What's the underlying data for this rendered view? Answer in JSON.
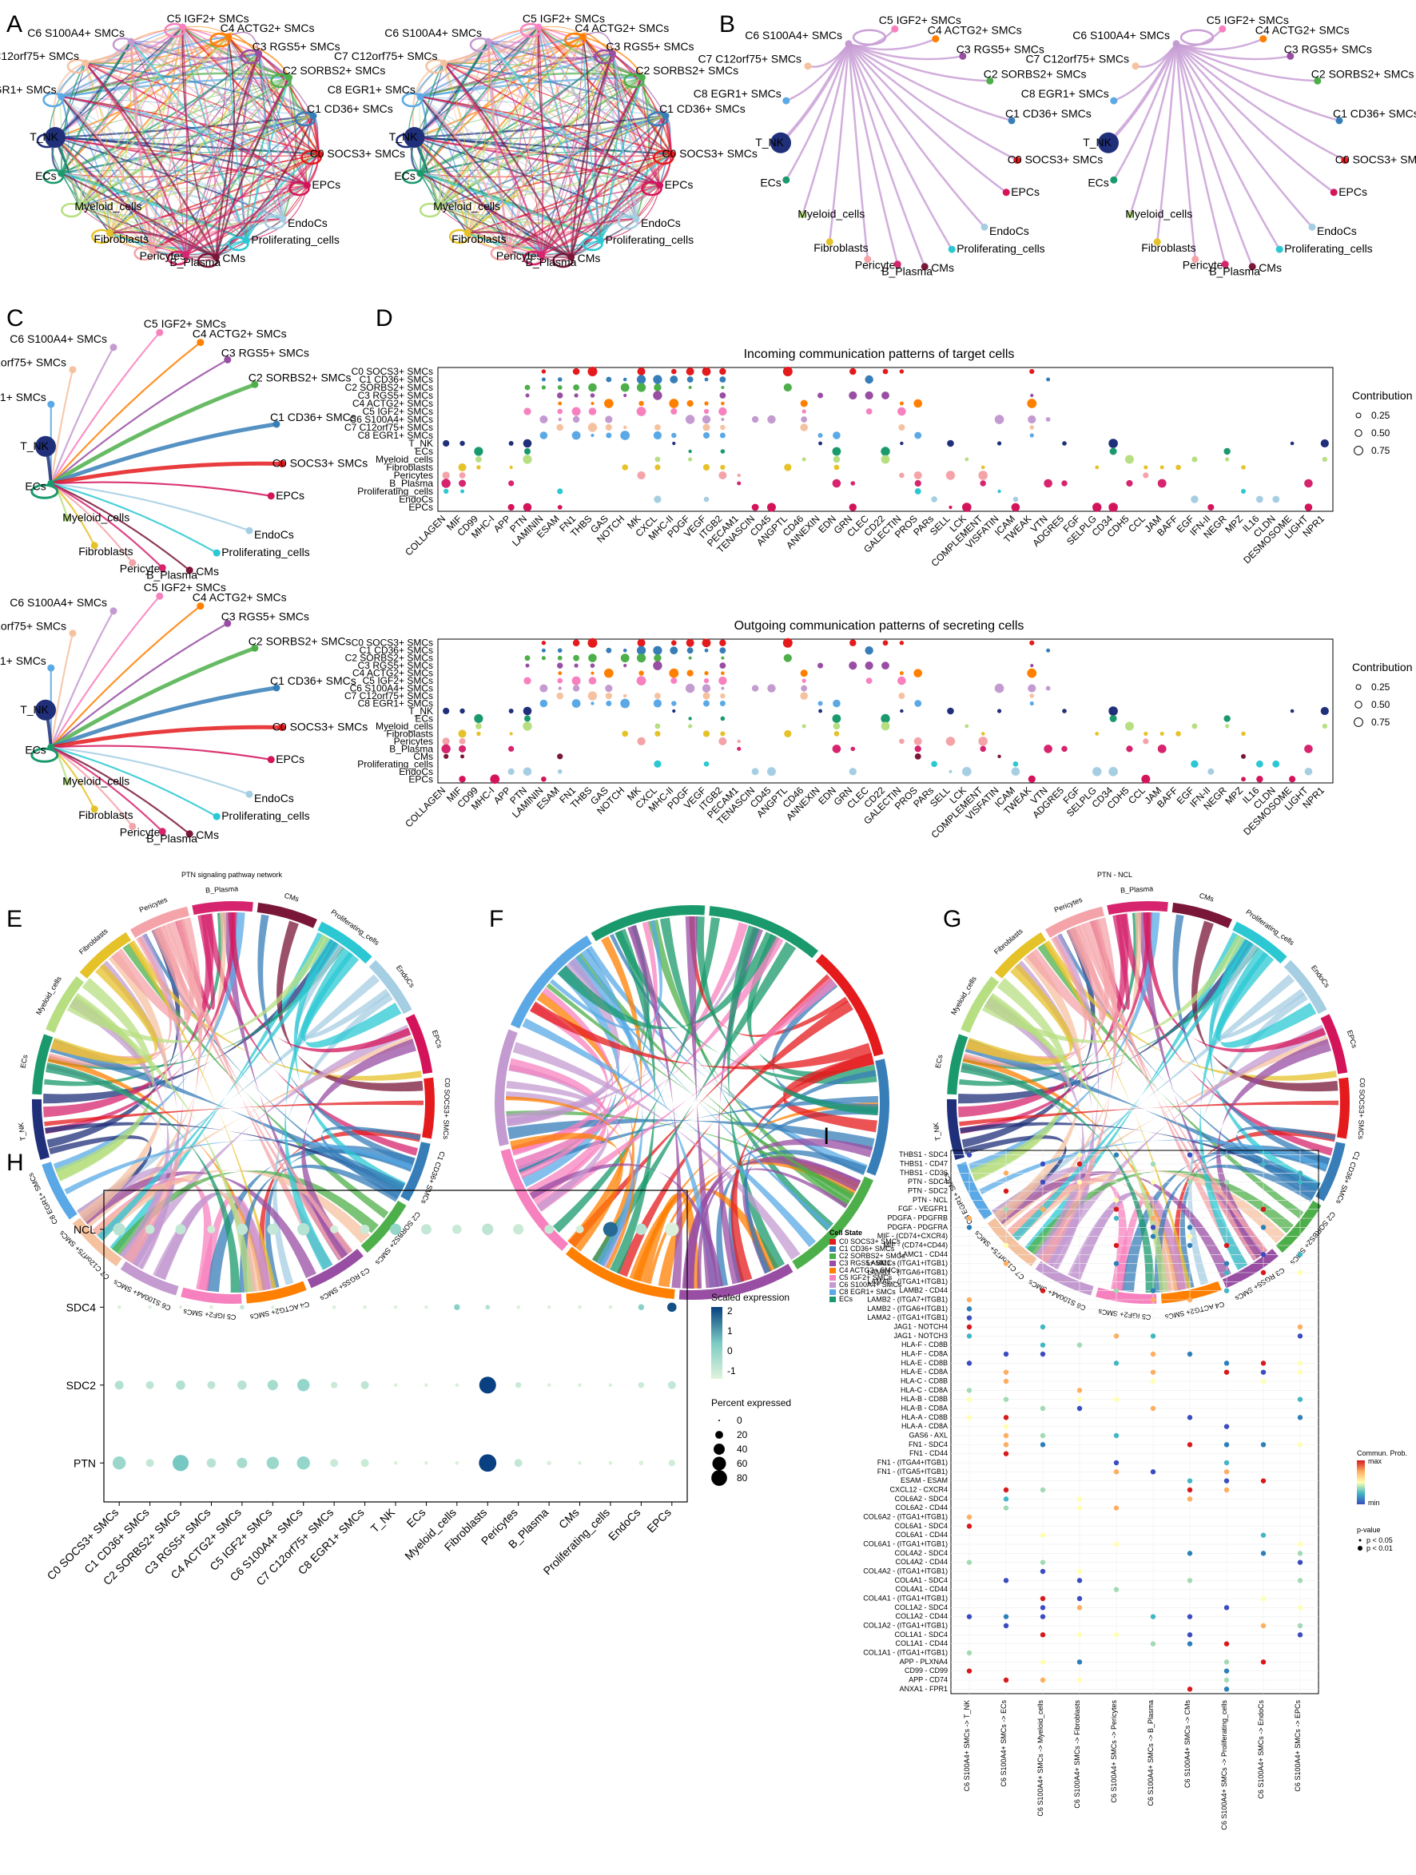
{
  "panel_letters": [
    "A",
    "B",
    "C",
    "D",
    "E",
    "F",
    "G",
    "H",
    "I"
  ],
  "colors": {
    "C0 SOCS3+ SMCs": "#e41a1c",
    "C1 CD36+ SMCs": "#377eb8",
    "C2 SORBS2+ SMCs": "#4daf4a",
    "C3 RGS5+ SMCs": "#984ea3",
    "C4 ACTG2+ SMCs": "#ff7f00",
    "C5 IGF2+ SMCs": "#f781bf",
    "C6 S100A4+ SMCs": "#c49bd1",
    "C7 C12orf75+ SMCs": "#f5c2a0",
    "C8 EGR1+ SMCs": "#5aa9e6",
    "T_NK": "#1f2f7a",
    "ECs": "#1a9a6c",
    "Myeloid_cells": "#b7df82",
    "Fibroblasts": "#e6c229",
    "Pericytes": "#f4a3a8",
    "B_Plasma": "#d6246e",
    "CMs": "#7a1638",
    "Proliferating_cells": "#2bc8d4",
    "EndoCs": "#a6cee3",
    "EPCs": "#d4145a"
  },
  "net_nodes": [
    "C5 IGF2+ SMCs",
    "C6 S100A4+ SMCs",
    "C4 ACTG2+ SMCs",
    "C3 RGS5+ SMCs",
    "C7 C12orf75+ SMCs",
    "C2 SORBS2+ SMCs",
    "C8 EGR1+ SMCs",
    "C1 CD36+ SMCs",
    "T_NK",
    "C0 SOCS3+ SMCs",
    "ECs",
    "EPCs",
    "Myeloid_cells",
    "EndoCs",
    "Fibroblasts",
    "Proliferating_cells",
    "Pericytes",
    "CMs",
    "B_Plasma"
  ],
  "panel_d": {
    "title_top": "Incoming communication patterns of target cells",
    "title_bottom": "Outgoing communication patterns of secreting cells",
    "legend_title": "Contribution",
    "legend_values": [
      "0.25",
      "0.50",
      "0.75"
    ],
    "rows": [
      "C0 SOCS3+ SMCs",
      "C1 CD36+ SMCs",
      "C2 SORBS2+ SMCs",
      "C3 RGS5+ SMCs",
      "C4 ACTG2+ SMCs",
      "C5 IGF2+ SMCs",
      "C6 S100A4+ SMCs",
      "C7 C12orf75+ SMCs",
      "C8 EGR1+ SMCs",
      "T_NK",
      "ECs",
      "Myeloid_cells",
      "Fibroblasts",
      "Pericytes",
      "B_Plasma",
      "Proliferating_cells",
      "EndoCs",
      "EPCs"
    ],
    "rows_bottom": [
      "C0 SOCS3+ SMCs",
      "C1 CD36+ SMCs",
      "C2 SORBS2+ SMCs",
      "C3 RGS5+ SMCs",
      "C4 ACTG2+ SMCs",
      "C5 IGF2+ SMCs",
      "C6 S100A4+ SMCs",
      "C7 C12orf75+ SMCs",
      "C8 EGR1+ SMCs",
      "T_NK",
      "ECs",
      "Myeloid_cells",
      "Fibroblasts",
      "Pericytes",
      "B_Plasma",
      "CMs",
      "Proliferating_cells",
      "EndoCs",
      "EPCs"
    ],
    "pathways": [
      "COLLAGEN",
      "MIF",
      "CD99",
      "MHC-I",
      "APP",
      "PTN",
      "LAMININ",
      "ESAM",
      "FN1",
      "THBS",
      "GAS",
      "NOTCH",
      "MK",
      "CXCL",
      "MHC-II",
      "PDGF",
      "VEGF",
      "ITGB2",
      "PECAM1",
      "TENASCIN",
      "CD45",
      "ANGPTL",
      "CD46",
      "ANNEXIN",
      "EDN",
      "GRN",
      "CLEC",
      "CD22",
      "GALECTIN",
      "PROS",
      "PARs",
      "SELL",
      "LCK",
      "COMPLEMENT",
      "VISFATIN",
      "ICAM",
      "TWEAK",
      "VTN",
      "ADGRE5",
      "FGF",
      "SELPLG",
      "CD34",
      "CDH5",
      "CCL",
      "JAM",
      "BAFF",
      "EGF",
      "IFN-II",
      "NEGR",
      "MPZ",
      "IL16",
      "CLDN",
      "DESMOSOME",
      "LIGHT",
      "NPR1"
    ]
  },
  "panel_c_caption": "PTN signaling pathway network",
  "panel_d_caption": "PTN - NCL",
  "chord_e": [
    "Pericytes",
    "B_Plasma",
    "CMs",
    "Proliferating_cells",
    "EndoCs",
    "EPCs",
    "C0 SOCS3+ SMCs",
    "C1 CD36+ SMCs",
    "C2 SORBS2+ SMCs",
    "C3 RGS5+ SMCs",
    "C4 ACTG2+ SMCs",
    "C5 IGF2+ SMCs",
    "C6 S100A4+ SMCs",
    "C7 C12orf75+ SMCs",
    "C8 EGR1+ SMCs",
    "T_NK",
    "ECs",
    "Myeloid_cells",
    "Fibroblasts"
  ],
  "chord_f_legend": {
    "title": "Cell State",
    "items": [
      "C0 SOCS3+ SMCs",
      "C1 CD36+ SMCs",
      "C2 SORBS2+ SMCs",
      "C3 RGS5+ SMCs",
      "C4 ACTG2+ SMCs",
      "C5 IGF2+ SMCs",
      "C6 S100A4+ SMCs",
      "C8 EGR1+ SMCs",
      "ECs"
    ]
  },
  "panel_h": {
    "chart_data": {
      "type": "scatter",
      "genes": [
        "NCL",
        "SDC4",
        "SDC2",
        "PTN"
      ],
      "cells": [
        "C0 SOCS3+ SMCs",
        "C1 CD36+ SMCs",
        "C2 SORBS2+ SMCs",
        "C3 RGS5+ SMCs",
        "C4 ACTG2+ SMCs",
        "C5 IGF2+ SMCs",
        "C6 S100A4+ SMCs",
        "C7 C12orf75+ SMCs",
        "C8 EGR1+ SMCs",
        "T_NK",
        "ECs",
        "Myeloid_cells",
        "Fibroblasts",
        "Pericytes",
        "B_Plasma",
        "CMs",
        "Proliferating_cells",
        "EndoCs",
        "EPCs"
      ],
      "pct": [
        [
          35,
          20,
          25,
          15,
          30,
          28,
          35,
          15,
          20,
          30,
          25,
          20,
          30,
          25,
          20,
          15,
          50,
          30,
          45
        ],
        [
          3,
          3,
          3,
          3,
          5,
          3,
          3,
          3,
          3,
          3,
          3,
          8,
          5,
          3,
          3,
          3,
          3,
          8,
          20
        ],
        [
          18,
          15,
          20,
          15,
          20,
          25,
          35,
          10,
          15,
          3,
          3,
          3,
          65,
          8,
          3,
          3,
          3,
          8,
          15
        ],
        [
          40,
          15,
          60,
          20,
          25,
          35,
          40,
          15,
          15,
          3,
          3,
          3,
          70,
          15,
          5,
          3,
          3,
          5,
          10
        ]
      ],
      "expr": [
        [
          -0.3,
          -0.6,
          -0.5,
          -0.7,
          -0.5,
          -0.5,
          -0.3,
          -0.8,
          -0.6,
          0.3,
          -0.5,
          -0.6,
          -0.4,
          -0.6,
          -0.5,
          -0.8,
          2.0,
          -0.3,
          -0.9
        ],
        [
          -0.9,
          -0.9,
          -0.9,
          -0.9,
          -0.5,
          -0.9,
          -0.9,
          -0.9,
          -0.9,
          -0.9,
          -0.9,
          0.5,
          -0.2,
          -0.9,
          -0.9,
          -0.9,
          -0.9,
          0.5,
          2.3
        ],
        [
          -0.2,
          -0.4,
          -0.2,
          -0.4,
          -0.3,
          0.0,
          0.3,
          -0.6,
          -0.4,
          -0.9,
          -0.9,
          -0.9,
          2.5,
          -0.6,
          -0.9,
          -0.9,
          -0.9,
          -0.6,
          -0.5
        ],
        [
          0.2,
          -0.5,
          0.8,
          -0.3,
          0.0,
          0.2,
          0.3,
          -0.6,
          -0.6,
          -0.9,
          -0.9,
          -0.9,
          2.5,
          -0.5,
          -0.9,
          -0.9,
          -0.9,
          -0.9,
          -0.7
        ]
      ],
      "legend_expr_title": "Scaled expression",
      "legend_expr_ticks": [
        "2",
        "1",
        "0",
        "-1"
      ],
      "legend_pct_title": "Percent expressed",
      "legend_pct_values": [
        "0",
        "20",
        "40",
        "60",
        "80"
      ]
    }
  },
  "panel_i": {
    "pairs": [
      "THBS1 - SDC4",
      "THBS1 - CD47",
      "THBS1 - CD36",
      "PTN - SDC4",
      "PTN - SDC2",
      "PTN - NCL",
      "FGF - VEGFR1",
      "PDGFA - PDGFRB",
      "PDGFA - PDGFRA",
      "MIF - (CD74+CXCR4)",
      "MIF - (CD74+CD44)",
      "LAMC1 - CD44",
      "LAMC1 - (ITGA1+ITGB1)",
      "LAMB1 - (ITGA6+ITGB1)",
      "LAMA5 - (ITGA1+ITGB1)",
      "LAMB2 - CD44",
      "LAMB2 - (ITGA7+ITGB1)",
      "LAMB2 - (ITGA6+ITGB1)",
      "LAMA2 - (ITGA1+ITGB1)",
      "JAG1 - NOTCH4",
      "JAG1 - NOTCH3",
      "HLA-F - CD8B",
      "HLA-F - CD8A",
      "HLA-E - CD8B",
      "HLA-E - CD8A",
      "HLA-C - CD8B",
      "HLA-C - CD8A",
      "HLA-B - CD8B",
      "HLA-B - CD8A",
      "HLA-A - CD8B",
      "HLA-A - CD8A",
      "GAS6 - AXL",
      "FN1 - SDC4",
      "FN1 - CD44",
      "FN1 - (ITGA4+ITGB1)",
      "FN1 - (ITGA5+ITGB1)",
      "ESAM - ESAM",
      "CXCL12 - CXCR4",
      "COL6A2 - SDC4",
      "COL6A2 - CD44",
      "COL6A2 - (ITGA1+ITGB1)",
      "COL6A1 - SDC4",
      "COL6A1 - CD44",
      "COL6A1 - (ITGA1+ITGB1)",
      "COL4A2 - SDC4",
      "COL4A2 - CD44",
      "COL4A2 - (ITGA1+ITGB1)",
      "COL4A1 - SDC4",
      "COL4A1 - CD44",
      "COL4A1 - (ITGA1+ITGB1)",
      "COL1A2 - SDC4",
      "COL1A2 - CD44",
      "COL1A2 - (ITGA1+ITGB1)",
      "COL1A1 - SDC4",
      "COL1A1 - CD44",
      "COL1A1 - (ITGA1+ITGB1)",
      "APP - PLXNA4",
      "CD99 - CD99",
      "APP - CD74",
      "ANXA1 - FPR1"
    ],
    "targets": [
      "C6 S100A4+ SMCs -> T_NK",
      "C6 S100A4+ SMCs -> ECs",
      "C6 S100A4+ SMCs -> Myeloid_cells",
      "C6 S100A4+ SMCs -> Fibroblasts",
      "C6 S100A4+ SMCs -> Pericytes",
      "C6 S100A4+ SMCs -> B_Plasma",
      "C6 S100A4+ SMCs -> CMs",
      "C6 S100A4+ SMCs -> Proliferating_cells",
      "C6 S100A4+ SMCs -> EndoCs",
      "C6 S100A4+ SMCs -> EPCs"
    ],
    "legend_title": "Commun. Prob.",
    "legend_min": "min",
    "legend_max": "max",
    "pval_title": "p-value",
    "pval_items": [
      "p < 0.05",
      "p < 0.01"
    ]
  }
}
